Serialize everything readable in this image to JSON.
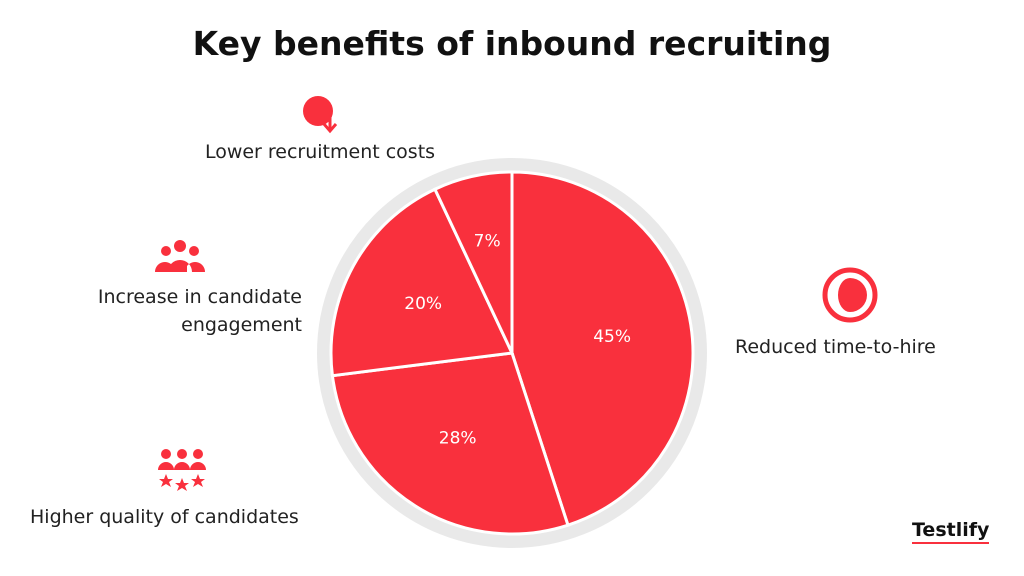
{
  "chart_data": {
    "type": "pie",
    "title": "Key benefits of inbound recruiting",
    "categories": [
      "Reduced time-to-hire",
      "Higher quality of candidates",
      "Increase in candidate engagement",
      "Lower recruitment costs"
    ],
    "values": [
      45,
      28,
      20,
      7
    ],
    "value_labels": [
      "45%",
      "28%",
      "20%",
      "7%"
    ],
    "color": "#f9303d"
  },
  "brand": "Testlify"
}
